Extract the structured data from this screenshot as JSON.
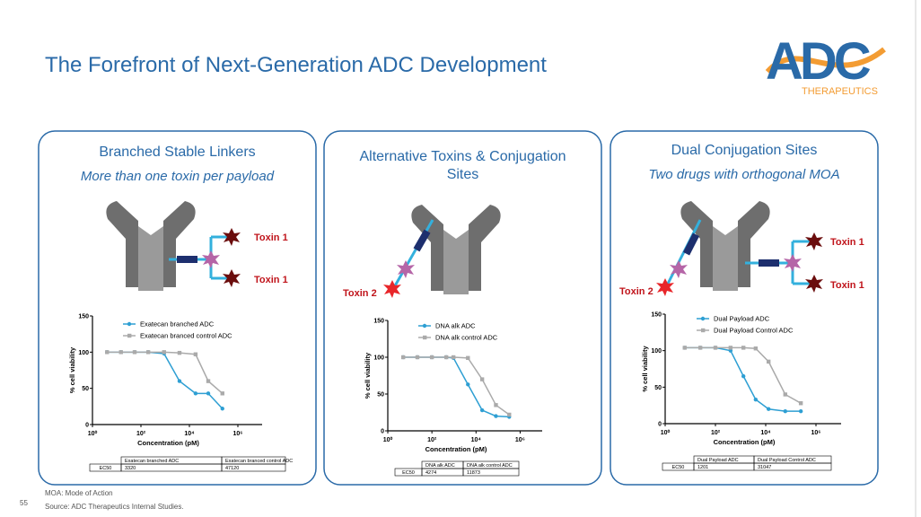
{
  "title": "The Forefront of Next-Generation ADC Development",
  "logo": {
    "text": "ADC",
    "subtitle": "THERAPEUTICS"
  },
  "page_number": "55",
  "footnotes": [
    "MOA: Mode of Action",
    "Source: ADC Therapeutics Internal Studies."
  ],
  "panels": [
    {
      "heading": "Branched Stable Linkers",
      "subheading": "More than one toxin per payload",
      "toxin_labels": [
        "Toxin 1",
        "Toxin 1"
      ],
      "chart": {
        "type": "line",
        "xlabel": "Concentration (pM)",
        "ylabel": "% cell viability",
        "xscale": "log",
        "xlim": [
          1,
          10000000
        ],
        "xticks": [
          {
            "value": 1,
            "label": "10⁰"
          },
          {
            "value": 100,
            "label": "10²"
          },
          {
            "value": 10000,
            "label": "10⁴"
          },
          {
            "value": 1000000,
            "label": "10⁶"
          }
        ],
        "ylim": [
          0,
          150
        ],
        "yticks": [
          0,
          50,
          100,
          150
        ],
        "x": [
          4,
          15,
          55,
          200,
          900,
          3900,
          18000,
          60000,
          230000
        ],
        "series": [
          {
            "name": "Exatecan branched ADC",
            "color": "#2e9fd3",
            "marker": "circle",
            "values": [
              100,
              100,
              100,
              100,
              98,
              60,
              43,
              43,
              22
            ]
          },
          {
            "name": "Exatecan branced control ADC",
            "color": "#aaaaaa",
            "marker": "square",
            "values": [
              100,
              100,
              100,
              100,
              100,
              99,
              97,
              60,
              43
            ]
          }
        ],
        "table": {
          "header": [
            "",
            "Exatecan branched ADC",
            "Exatecan branced control ADC"
          ],
          "rows": [
            [
              "EC50",
              "3320",
              "47120"
            ]
          ]
        }
      }
    },
    {
      "heading": "Alternative Toxins & Conjugation Sites",
      "toxin_labels": [
        "Toxin 2"
      ],
      "chart": {
        "type": "line",
        "xlabel": "Concentration (pM)",
        "ylabel": "% cell viability",
        "xscale": "log",
        "xlim": [
          1,
          10000000
        ],
        "xticks": [
          {
            "value": 1,
            "label": "10⁰"
          },
          {
            "value": 100,
            "label": "10²"
          },
          {
            "value": 10000,
            "label": "10⁴"
          },
          {
            "value": 1000000,
            "label": "10⁶"
          }
        ],
        "ylim": [
          0,
          150
        ],
        "yticks": [
          0,
          50,
          100,
          150
        ],
        "x": [
          5,
          22,
          100,
          450,
          950,
          4300,
          19000,
          80000,
          320000
        ],
        "series": [
          {
            "name": "DNA alk ADC",
            "color": "#2e9fd3",
            "marker": "circle",
            "values": [
              100,
              100,
              100,
              100,
              99,
              63,
              28,
              20,
              19
            ]
          },
          {
            "name": "DNA alk control ADC",
            "color": "#aaaaaa",
            "marker": "square",
            "values": [
              100,
              100,
              100,
              100,
              100,
              99,
              70,
              35,
              22
            ]
          }
        ],
        "table": {
          "header": [
            "",
            "DNA alk ADC",
            "DNA alk control ADC"
          ],
          "rows": [
            [
              "EC50",
              "4274",
              "11873"
            ]
          ]
        }
      }
    },
    {
      "heading": "Dual Conjugation Sites",
      "subheading": "Two drugs with orthogonal MOA",
      "toxin_labels": [
        "Toxin 2",
        "Toxin 1",
        "Toxin 1"
      ],
      "chart": {
        "type": "line",
        "xlabel": "Concentration (pM)",
        "ylabel": "% cell viability",
        "xscale": "log",
        "xlim": [
          1,
          10000000
        ],
        "xticks": [
          {
            "value": 1,
            "label": "10⁰"
          },
          {
            "value": 100,
            "label": "10²"
          },
          {
            "value": 10000,
            "label": "10⁴"
          },
          {
            "value": 1000000,
            "label": "10⁶"
          }
        ],
        "ylim": [
          0,
          150
        ],
        "yticks": [
          0,
          50,
          100,
          150
        ],
        "x": [
          6,
          25,
          100,
          400,
          1300,
          4000,
          13000,
          60000,
          250000
        ],
        "series": [
          {
            "name": "Dual Payload ADC",
            "color": "#2e9fd3",
            "marker": "circle",
            "values": [
              104,
              104,
              104,
              100,
              65,
              33,
              20,
              17,
              17
            ]
          },
          {
            "name": "Dual Payload Control ADC",
            "color": "#aaaaaa",
            "marker": "square",
            "values": [
              104,
              104,
              104,
              104,
              104,
              103,
              85,
              40,
              28
            ]
          }
        ],
        "table": {
          "header": [
            "",
            "Dual Payload ADC",
            "Dual Payload Control ADC"
          ],
          "rows": [
            [
              "EC50",
              "1201",
              "31047"
            ]
          ]
        }
      }
    }
  ]
}
